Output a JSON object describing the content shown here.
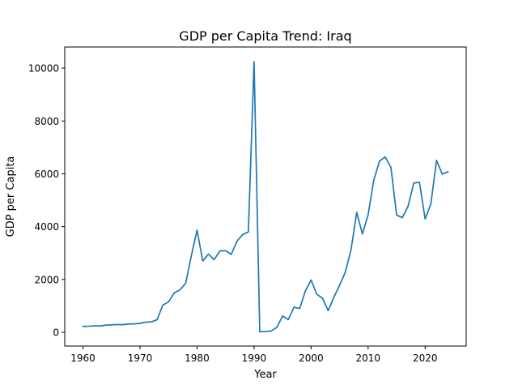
{
  "chart_data": {
    "type": "line",
    "title": "GDP per Capita Trend: Iraq",
    "xlabel": "Year",
    "ylabel": "GDP per Capita",
    "xlim": [
      1956.8,
      2027.2
    ],
    "ylim": [
      -520,
      10800
    ],
    "xticks": [
      1960,
      1970,
      1980,
      1990,
      2000,
      2010,
      2020
    ],
    "yticks": [
      0,
      2000,
      4000,
      6000,
      8000,
      10000
    ],
    "grid": false,
    "line_color": "#1f77b4",
    "series": [
      {
        "x": [
          1960,
          1961,
          1962,
          1963,
          1964,
          1965,
          1966,
          1967,
          1968,
          1969,
          1970,
          1971,
          1972,
          1973,
          1974,
          1975,
          1976,
          1977,
          1978,
          1979,
          1980,
          1981,
          1982,
          1983,
          1984,
          1985,
          1986,
          1987,
          1988,
          1989,
          1990,
          1991,
          1992,
          1993,
          1994,
          1995,
          1996,
          1997,
          1998,
          1999,
          2000,
          2001,
          2002,
          2003,
          2004,
          2005,
          2006,
          2007,
          2008,
          2009,
          2010,
          2011,
          2012,
          2013,
          2014,
          2015,
          2016,
          2017,
          2018,
          2019,
          2020,
          2021,
          2022,
          2023,
          2024
        ],
        "values": [
          220,
          230,
          245,
          240,
          270,
          285,
          295,
          290,
          315,
          320,
          340,
          385,
          395,
          480,
          1030,
          1150,
          1490,
          1610,
          1850,
          2900,
          3870,
          2700,
          2960,
          2750,
          3080,
          3090,
          2950,
          3450,
          3700,
          3800,
          10250,
          20,
          30,
          50,
          190,
          620,
          480,
          950,
          900,
          1570,
          1980,
          1440,
          1290,
          820,
          1330,
          1780,
          2280,
          3120,
          4540,
          3720,
          4450,
          5770,
          6480,
          6640,
          6240,
          4440,
          4340,
          4770,
          5650,
          5680,
          4290,
          4860,
          6510,
          5990,
          6080
        ]
      }
    ]
  }
}
